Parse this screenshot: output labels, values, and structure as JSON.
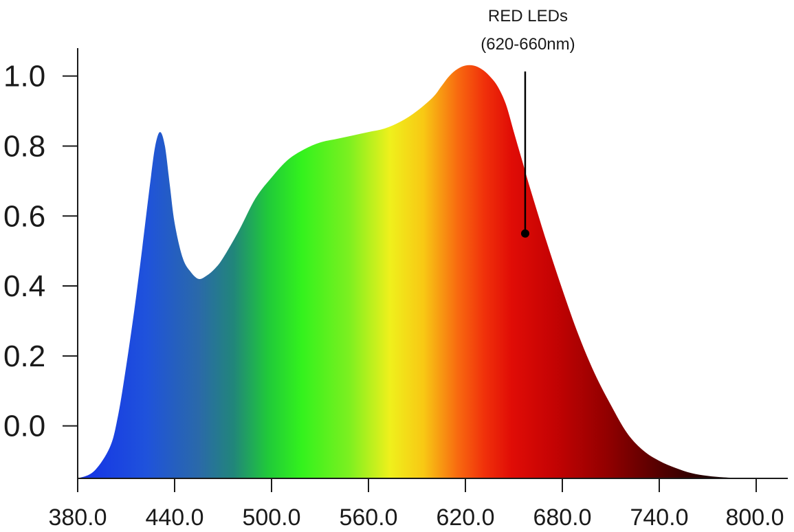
{
  "chart_data": {
    "type": "area",
    "title": "",
    "xlabel": "",
    "ylabel": "",
    "xlim": [
      380,
      800
    ],
    "ylim": [
      -0.15,
      1.05
    ],
    "x_ticks": [
      380,
      440,
      500,
      560,
      620,
      680,
      740,
      800
    ],
    "x_tick_labels": [
      "380.0",
      "440.0",
      "500.0",
      "560.0",
      "620.0",
      "680.0",
      "740.0",
      "800.0"
    ],
    "y_ticks": [
      0.0,
      0.2,
      0.4,
      0.6,
      0.8,
      1.0
    ],
    "y_tick_labels": [
      "0.0",
      "0.2",
      "0.4",
      "0.6",
      "0.8",
      "1.0"
    ],
    "grid": false,
    "fill": "spectral gradient (blue → green → yellow → orange → red → black)",
    "series": [
      {
        "x": [
          380,
          390,
          400,
          405,
          410,
          415,
          420,
          425,
          428,
          431,
          434,
          437,
          440,
          445,
          450,
          455,
          460,
          465,
          470,
          480,
          490,
          500,
          510,
          520,
          530,
          540,
          550,
          560,
          570,
          580,
          590,
          600,
          605,
          610,
          615,
          620,
          625,
          630,
          635,
          640,
          645,
          650,
          655,
          660,
          670,
          680,
          690,
          700,
          710,
          720,
          730,
          740,
          750,
          760,
          770,
          780,
          790,
          798
        ],
        "y": [
          -0.15,
          -0.13,
          -0.06,
          0.03,
          0.17,
          0.33,
          0.51,
          0.7,
          0.8,
          0.84,
          0.8,
          0.69,
          0.58,
          0.48,
          0.44,
          0.42,
          0.43,
          0.45,
          0.48,
          0.56,
          0.65,
          0.71,
          0.76,
          0.79,
          0.81,
          0.82,
          0.83,
          0.84,
          0.85,
          0.87,
          0.9,
          0.94,
          0.97,
          1.0,
          1.02,
          1.03,
          1.03,
          1.02,
          1.0,
          0.97,
          0.92,
          0.84,
          0.76,
          0.68,
          0.53,
          0.39,
          0.26,
          0.15,
          0.06,
          -0.02,
          -0.07,
          -0.1,
          -0.12,
          -0.135,
          -0.143,
          -0.147,
          -0.149,
          -0.15
        ]
      }
    ],
    "annotations": [
      {
        "line1": "RED LEDs",
        "line2": "(620-660nm)",
        "x": 657,
        "y": 0.55
      }
    ]
  }
}
